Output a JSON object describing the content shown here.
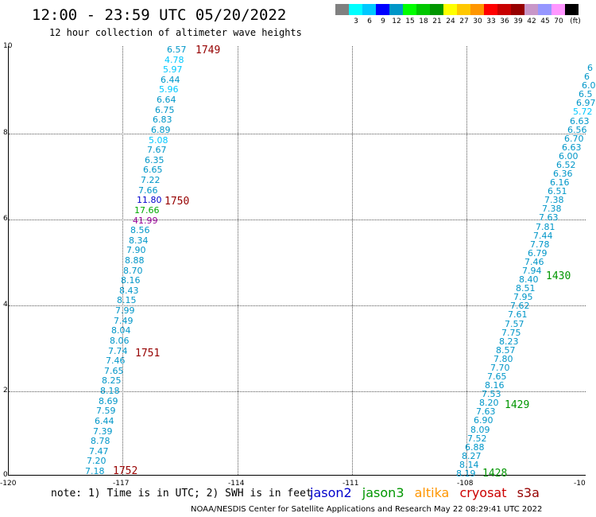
{
  "header": {
    "title": "12:00 - 23:59 UTC 05/20/2022",
    "subtitle": "12 hour collection of altimeter wave heights"
  },
  "colorbar": {
    "swatches": [
      "#808080",
      "#00ffff",
      "#00c8ff",
      "#0000ff",
      "#0096c8",
      "#00ff00",
      "#00c800",
      "#009600",
      "#ffff00",
      "#ffc800",
      "#ff9600",
      "#ff0000",
      "#c80000",
      "#960000",
      "#c896c8",
      "#9696ff",
      "#ff96ff",
      "#000000"
    ],
    "labels": [
      "3",
      "6",
      "9",
      "12",
      "15",
      "18",
      "21",
      "24",
      "27",
      "30",
      "33",
      "36",
      "39",
      "42",
      "45",
      "70"
    ],
    "unit": "(ft)"
  },
  "axes": {
    "x_ticks": [
      "-120",
      "-117",
      "-114",
      "-111",
      "-108",
      "-10"
    ],
    "y_ticks": [
      "0",
      "2",
      "4",
      "6",
      "8",
      "10"
    ]
  },
  "track1_values": [
    "7.18",
    "7.20",
    "7.47",
    "8.78",
    "7.39",
    "6.44",
    "7.59",
    "8.69",
    "8.18",
    "8.25",
    "7.65",
    "7.46",
    "7.74",
    "8.06",
    "8.04",
    "7.49",
    "7.99",
    "8.15",
    "8.43",
    "8.16",
    "8.70",
    "8.88",
    "7.90",
    "8.34",
    "8.56",
    "41.99",
    "17.66",
    "11.80",
    "7.66",
    "7.22",
    "6.65",
    "6.35",
    "7.67",
    "5.08",
    "6.89",
    "6.83",
    "6.75",
    "6.64",
    "5.96",
    "6.44",
    "5.97",
    "4.78",
    "6.57"
  ],
  "track2_values": [
    "8.19",
    "8.14",
    "8.27",
    "6.88",
    "7.52",
    "8.09",
    "6.90",
    "7.63",
    "8.20",
    "7.53",
    "8.16",
    "7.65",
    "7.70",
    "7.80",
    "8.57",
    "8.23",
    "7.75",
    "7.57",
    "7.61",
    "7.62",
    "7.95",
    "8.51",
    "8.40",
    "7.94",
    "7.46",
    "6.79",
    "7.78",
    "7.44",
    "7.81",
    "7.63",
    "7.38",
    "7.38",
    "6.51",
    "6.16",
    "6.36",
    "6.52",
    "6.00",
    "6.63",
    "6.70",
    "6.56",
    "6.63",
    "5.72",
    "6.97",
    "6.5",
    "6.0",
    "6",
    "6"
  ],
  "track1_times": [
    "1752",
    "1751",
    "1750",
    "1749"
  ],
  "track2_times": [
    "1428",
    "1429",
    "1430"
  ],
  "footnote": "note: 1) Time is in UTC; 2) SWH is in feet",
  "missions": [
    "jason2",
    "jason3",
    "altika",
    "cryosat",
    "s3a"
  ],
  "mission_colors": [
    "#0000cc",
    "#009600",
    "#ff9600",
    "#cc0000",
    "#960000"
  ],
  "credit": "NOAA/NESDIS Center for Satellite Applications and Research   May 22 08:29:41 UTC 2022"
}
